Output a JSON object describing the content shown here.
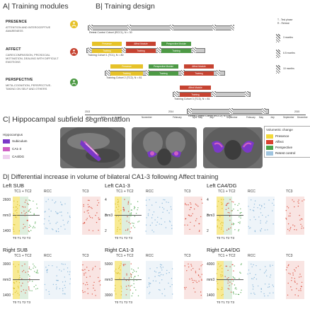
{
  "panelA": {
    "title": "A| Training modules",
    "modules": [
      {
        "name": "PRESENCE",
        "desc": "ATTENTION AND INTEROCEPTIVE AWARENESS",
        "color": "#e6c229",
        "icon": "meditation-icon"
      },
      {
        "name": "AFFECT",
        "desc": "CARE/COMPASSION, PROSOCIAL MOTIVATION, DEALING WITH DIFFICULT EMOTIONS",
        "color": "#c64331",
        "icon": "heart-hands-icon"
      },
      {
        "name": "PERSPECTIVE",
        "desc": "META-COGNITION, PERSPECTIVE-TAKING ON SELF AND OTHERS",
        "color": "#4d9a45",
        "icon": "perspective-icon"
      }
    ]
  },
  "panelB": {
    "title": "B| Training design",
    "rows": [
      {
        "label": "Retest Control Cohort (RCC1), N = 30"
      },
      {
        "label": "Training Cohort 1 (TC1), N = 80",
        "modules": [
          "Presence",
          "Affect Module",
          "Perspective Module"
        ]
      },
      {
        "label": "Training Cohort 2 (TC2), N = 81",
        "modules": [
          "Presence",
          "Perspective Module",
          "Affect Module"
        ]
      },
      {
        "label": "Training Cohort 3 (TC3), N = 81",
        "modules": [
          "Affect Module"
        ]
      },
      {
        "label": "Retest Control Cohort (RCC2), N = 60"
      }
    ],
    "training_word": "Training",
    "legend": [
      "T - Test phase",
      "R - Retreat"
    ],
    "durations": [
      "3 months",
      "6.5 months",
      "10 months"
    ],
    "months": [
      "April",
      "June",
      "August",
      "November",
      "February",
      "April",
      "May",
      "July",
      "September",
      "February",
      "May",
      "July",
      "September",
      "December"
    ],
    "years": [
      "2013",
      "2014",
      "2015"
    ]
  },
  "panelC": {
    "title": "C| Hippocampal subfield segmentation",
    "legend_title": "Hippocampus",
    "subfields": [
      {
        "label": "Subiculum",
        "color": "#7b38c8"
      },
      {
        "label": "CA1-3",
        "color": "#cf5fc4"
      },
      {
        "label": "CA4/DG",
        "color": "#efd0ef"
      }
    ],
    "vol_title": "Volumetric change",
    "vol_items": [
      {
        "label": "Presence",
        "color": "#f2d93a"
      },
      {
        "label": "Affect",
        "color": "#d8412f"
      },
      {
        "label": "Perspective",
        "color": "#4aa34a"
      },
      {
        "label": "Retest control",
        "color": "#9fc4df"
      }
    ]
  },
  "panelD": {
    "title": "D| Differential increase in volume of bilateral CA1-3 following Affect training",
    "ylabel": "mm3",
    "sub_titles": [
      "TC1 + TC2",
      "RCC",
      "TC3"
    ],
    "xticks": "T0 T1 T2 T3",
    "plots": [
      {
        "region": "Left SUB",
        "yticks": [
          "2600",
          "1400"
        ]
      },
      {
        "region": "Left CA1-3",
        "yticks": [
          "4",
          "3",
          "2"
        ]
      },
      {
        "region": "Left CA4/DG",
        "yticks": [
          "4",
          "3",
          "2"
        ]
      },
      {
        "region": "Right SUB",
        "yticks": [
          "3000",
          "1400"
        ]
      },
      {
        "region": "Right CA1-3",
        "yticks": [
          "5000",
          "3000"
        ]
      },
      {
        "region": "Right CA4/DG",
        "yticks": [
          "4000",
          "1400"
        ]
      }
    ]
  }
}
